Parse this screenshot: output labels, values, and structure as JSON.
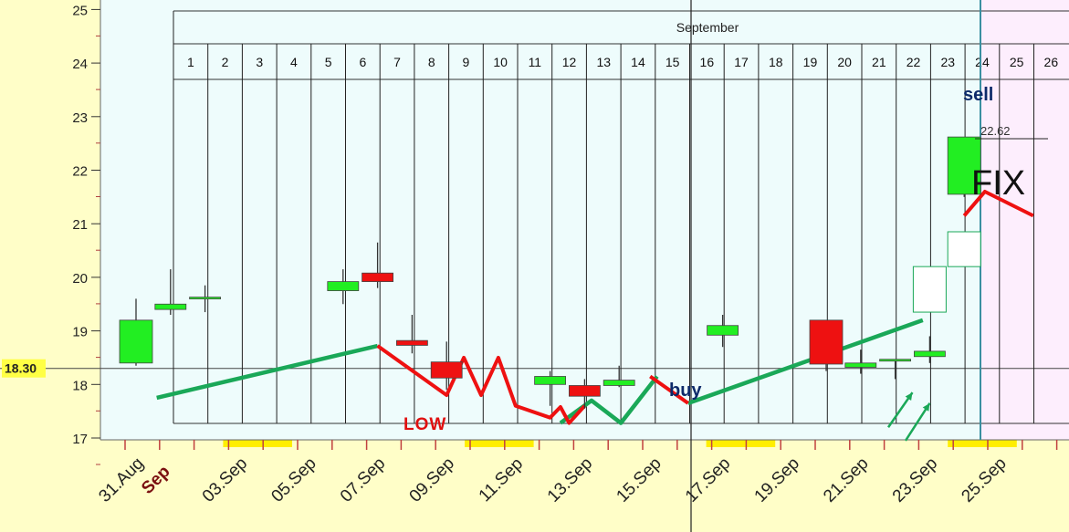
{
  "chart_data": {
    "type": "candlestick",
    "y_axis": {
      "ticks": [
        17,
        18,
        19,
        20,
        21,
        22,
        23,
        24,
        25
      ],
      "ylim": [
        17,
        25.2
      ]
    },
    "price_marker": {
      "label": "18.30",
      "value": 18.3
    },
    "x_axis_labels": [
      {
        "text": "31.Aug",
        "day": 0,
        "color": "#222"
      },
      {
        "text": "Sep",
        "day": 1,
        "color": "#7a1010",
        "bold": true
      },
      {
        "text": "03.Sep",
        "day": 3
      },
      {
        "text": "05.Sep",
        "day": 5
      },
      {
        "text": "07.Sep",
        "day": 7
      },
      {
        "text": "09.Sep",
        "day": 9
      },
      {
        "text": "11.Sep",
        "day": 11
      },
      {
        "text": "13.Sep",
        "day": 13
      },
      {
        "text": "15.Sep",
        "day": 15
      },
      {
        "text": "17.Sep",
        "day": 17
      },
      {
        "text": "19.Sep",
        "day": 19
      },
      {
        "text": "21.Sep",
        "day": 21
      },
      {
        "text": "23.Sep",
        "day": 23
      },
      {
        "text": "25.Sep",
        "day": 25
      }
    ],
    "weekend_marks": [
      [
        3,
        5
      ],
      [
        10,
        12
      ],
      [
        17,
        19
      ],
      [
        24,
        26
      ]
    ],
    "calendar": {
      "month": "September",
      "days": [
        "1",
        "2",
        "3",
        "4",
        "5",
        "6",
        "7",
        "8",
        "9",
        "10",
        "11",
        "12",
        "13",
        "14",
        "15",
        "16",
        "17",
        "18",
        "19",
        "20",
        "21",
        "22",
        "23",
        "24",
        "25",
        "26"
      ]
    },
    "candles": [
      {
        "day": 0,
        "open": 18.4,
        "close": 19.2,
        "high": 19.6,
        "low": 18.35,
        "dir": "up"
      },
      {
        "day": 1,
        "open": 19.4,
        "close": 19.5,
        "high": 20.15,
        "low": 19.3,
        "dir": "up"
      },
      {
        "day": 2,
        "open": 19.6,
        "close": 19.63,
        "high": 19.85,
        "low": 19.35,
        "dir": "up"
      },
      {
        "day": 6,
        "open": 19.75,
        "close": 19.92,
        "high": 20.15,
        "low": 19.5,
        "dir": "up"
      },
      {
        "day": 7,
        "open": 20.08,
        "close": 19.92,
        "high": 20.65,
        "low": 19.8,
        "dir": "down"
      },
      {
        "day": 8,
        "open": 18.82,
        "close": 18.73,
        "high": 19.3,
        "low": 18.58,
        "dir": "down"
      },
      {
        "day": 9,
        "open": 18.42,
        "close": 18.12,
        "high": 18.8,
        "low": 17.9,
        "dir": "down"
      },
      {
        "day": 12,
        "open": 18.0,
        "close": 18.15,
        "high": 18.25,
        "low": 17.6,
        "dir": "up"
      },
      {
        "day": 13,
        "open": 17.98,
        "close": 17.78,
        "high": 18.1,
        "low": 17.55,
        "dir": "down"
      },
      {
        "day": 14,
        "open": 17.98,
        "close": 18.08,
        "high": 18.35,
        "low": 17.95,
        "dir": "up"
      },
      {
        "day": 17,
        "open": 18.92,
        "close": 19.1,
        "high": 19.3,
        "low": 18.7,
        "dir": "up"
      },
      {
        "day": 20,
        "open": 19.2,
        "close": 18.38,
        "high": 19.2,
        "low": 18.25,
        "dir": "down"
      },
      {
        "day": 21,
        "open": 18.32,
        "close": 18.4,
        "high": 18.65,
        "low": 18.2,
        "dir": "up"
      },
      {
        "day": 22,
        "open": 18.45,
        "close": 18.47,
        "high": 18.47,
        "low": 18.1,
        "dir": "up"
      },
      {
        "day": 23,
        "open": 18.52,
        "close": 18.62,
        "high": 18.9,
        "low": 18.4,
        "dir": "up"
      },
      {
        "day": 24,
        "open": 21.55,
        "close": 22.62,
        "high": 22.62,
        "low": 21.5,
        "dir": "up"
      }
    ],
    "projected_candles": [
      {
        "day": 23,
        "open": 19.35,
        "close": 20.2
      },
      {
        "day": 24,
        "open": 20.2,
        "close": 20.85
      }
    ],
    "annotation_lines": {
      "green": [
        [
          [
            0.6,
            17.75
          ],
          [
            7,
            18.72
          ]
        ],
        [
          [
            12.3,
            17.28
          ],
          [
            13.2,
            17.7
          ],
          [
            14.05,
            17.28
          ],
          [
            15.1,
            18.15
          ]
        ],
        [
          [
            16,
            17.65
          ],
          [
            22.8,
            19.2
          ]
        ]
      ],
      "red": [
        [
          [
            7,
            18.72
          ],
          [
            9,
            17.8
          ],
          [
            9.5,
            18.5
          ],
          [
            10,
            17.8
          ],
          [
            10.5,
            18.5
          ],
          [
            11,
            17.6
          ],
          [
            12,
            17.38
          ],
          [
            12.3,
            17.58
          ],
          [
            12.55,
            17.28
          ],
          [
            13,
            17.6
          ]
        ],
        [
          [
            14.9,
            18.15
          ],
          [
            16,
            17.65
          ]
        ],
        [
          [
            24,
            21.15
          ],
          [
            24.6,
            21.6
          ],
          [
            26,
            21.15
          ]
        ]
      ]
    },
    "arrows": [
      {
        "from": [
          21.8,
          17.2
        ],
        "to": [
          22.5,
          17.85
        ]
      },
      {
        "from": [
          22.3,
          16.95
        ],
        "to": [
          23.0,
          17.65
        ]
      }
    ],
    "labels": {
      "sell": "sell",
      "fix": "FIX",
      "buy": "buy",
      "low": "Low",
      "price_22_62": "22.62"
    },
    "colors": {
      "up": "#22ee22",
      "down": "#ee1111",
      "green_line": "#1aa858",
      "red_line": "#ee1111",
      "pink_region": "#fdeefd",
      "axis_bg": "#fffec8",
      "plot_bg": "#eefcfc",
      "navy": "#0d2a6a",
      "price_badge": "#ffff44"
    }
  }
}
